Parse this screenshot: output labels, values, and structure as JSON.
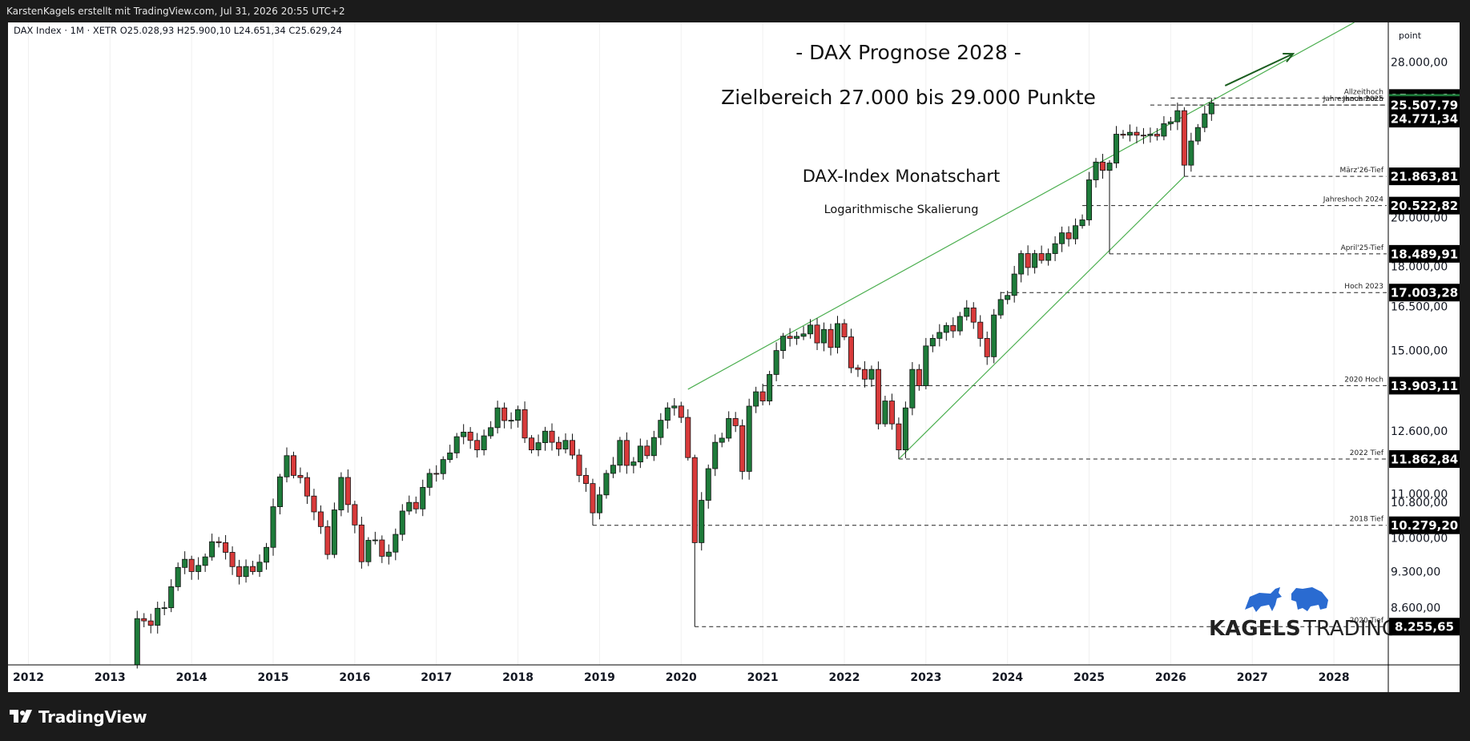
{
  "header": {
    "byline": "KarstenKagels erstellt mit TradingView.com, Jul 31, 2026 20:55 UTC+2"
  },
  "footer": {
    "brand": "TradingView"
  },
  "watermark": {
    "brand": "KAGELS TRADING",
    "brand_bold": "KAGELS",
    "brand_light": "TRADING"
  },
  "chart_data": {
    "type": "candlestick",
    "symbol_line": "DAX Index · 1M · XETR  O25.028,93  H25.900,10  L24.651,34  C25.629,24",
    "title": "- DAX Prognose 2028 -",
    "subtitle": "Zielbereich 27.000 bis 29.000 Punkte",
    "annotation_title": "DAX-Index Monatschart",
    "annotation_subtitle": "Logarithmische Skalierung",
    "y_unit": "point",
    "y_scale": "log",
    "ylim": [
      7600,
      30500
    ],
    "x_range": [
      "2011-10",
      "2028-09"
    ],
    "x_ticks": [
      "2012",
      "2013",
      "2014",
      "2015",
      "2016",
      "2017",
      "2018",
      "2019",
      "2020",
      "2021",
      "2022",
      "2023",
      "2024",
      "2025",
      "2026",
      "2027",
      "2028"
    ],
    "y_ticks": [
      {
        "value": 28000,
        "label": "28.000,00"
      },
      {
        "value": 20000,
        "label": "20.000,00"
      },
      {
        "value": 18000,
        "label": "18.000,00"
      },
      {
        "value": 16500,
        "label": "16.500,00"
      },
      {
        "value": 15000,
        "label": "15.000,00"
      },
      {
        "value": 12600,
        "label": "12.600,00"
      },
      {
        "value": 11000,
        "label": "11.000,00"
      },
      {
        "value": 10800,
        "label": "10.800,00"
      },
      {
        "value": 10000,
        "label": "10.000,00"
      },
      {
        "value": 9300,
        "label": "9.300,00"
      },
      {
        "value": 8600,
        "label": "8.600,00"
      }
    ],
    "price_tags": [
      {
        "value": 25900.1,
        "label": "25.900,10",
        "style": "dark"
      },
      {
        "value": 25629.24,
        "label": "25.629,24",
        "style": "green"
      },
      {
        "value": 25507.79,
        "label": "25.507,79",
        "style": "dark"
      },
      {
        "value": 24771.34,
        "label": "24.771,34",
        "style": "dark"
      },
      {
        "value": 21863.81,
        "label": "21.863,81",
        "style": "dark"
      },
      {
        "value": 20522.82,
        "label": "20.522,82",
        "style": "dark"
      },
      {
        "value": 18489.91,
        "label": "18.489,91",
        "style": "dark"
      },
      {
        "value": 17003.28,
        "label": "17.003,28",
        "style": "dark"
      },
      {
        "value": 13903.11,
        "label": "13.903,11",
        "style": "dark"
      },
      {
        "value": 11862.84,
        "label": "11.862,84",
        "style": "dark"
      },
      {
        "value": 10279.2,
        "label": "10.279,20",
        "style": "dark"
      },
      {
        "value": 8255.65,
        "label": "8.255,65",
        "style": "dark"
      }
    ],
    "levels": [
      {
        "name": "Allzeithoch",
        "value": 25900.1,
        "from": "2026-01"
      },
      {
        "name": "Januarhoch",
        "value": 25507.79,
        "from": "2026-01"
      },
      {
        "name": "Jahreshoch 2025",
        "value": 25507.79,
        "from": "2025-10"
      },
      {
        "name": "März'26-Tief",
        "value": 21863.81,
        "from": "2026-03"
      },
      {
        "name": "Jahreshoch 2024",
        "value": 20522.82,
        "from": "2024-12"
      },
      {
        "name": "April'25-Tief",
        "value": 18489.91,
        "from": "2025-04"
      },
      {
        "name": "Hoch 2023",
        "value": 17003.28,
        "from": "2023-12"
      },
      {
        "name": "2020 Hoch",
        "value": 13903.11,
        "from": "2021-01"
      },
      {
        "name": "2022 Tief",
        "value": 11862.84,
        "from": "2022-09"
      },
      {
        "name": "2018 Tief",
        "value": 10279.2,
        "from": "2018-12"
      },
      {
        "name": "2020 Tief",
        "value": 8255.65,
        "from": "2020-03"
      }
    ],
    "trendlines": [
      {
        "from": [
          "2020-02",
          13795
        ],
        "to": [
          "2028-04",
          30500
        ]
      },
      {
        "from": [
          "2022-09",
          11862
        ],
        "to": [
          "2026-03",
          21863
        ]
      }
    ],
    "forecast_arrow": {
      "from": [
        "2026-09",
        26600
      ],
      "to": [
        "2027-07",
        28500
      ]
    },
    "colors": {
      "up": "#1e7b3a",
      "down": "#d83a3a",
      "trend": "#4caf50",
      "arrow": "#1b5e20",
      "tag_dark": "#000000",
      "tag_green": "#1e7b3a"
    },
    "anchors": [
      [
        "2013-04",
        7600
      ],
      [
        "2013-05",
        8400
      ],
      [
        "2013-07",
        8280
      ],
      [
        "2013-09",
        8600
      ],
      [
        "2013-10",
        9000
      ],
      [
        "2013-12",
        9550
      ],
      [
        "2014-01",
        9300
      ],
      [
        "2014-03",
        9600
      ],
      [
        "2014-05",
        9900
      ],
      [
        "2014-07",
        9400
      ],
      [
        "2014-08",
        9200
      ],
      [
        "2014-10",
        9300
      ],
      [
        "2014-12",
        9800
      ],
      [
        "2015-01",
        10700
      ],
      [
        "2015-03",
        11950
      ],
      [
        "2015-04",
        11450
      ],
      [
        "2015-06",
        10950
      ],
      [
        "2015-08",
        10250
      ],
      [
        "2015-09",
        9650
      ],
      [
        "2015-11",
        11400
      ],
      [
        "2015-12",
        10750
      ],
      [
        "2016-02",
        9500
      ],
      [
        "2016-03",
        9950
      ],
      [
        "2016-06",
        9700
      ],
      [
        "2016-08",
        10600
      ],
      [
        "2016-10",
        10650
      ],
      [
        "2016-12",
        11500
      ],
      [
        "2017-02",
        11850
      ],
      [
        "2017-04",
        12450
      ],
      [
        "2017-06",
        12350
      ],
      [
        "2017-07",
        12100
      ],
      [
        "2017-10",
        13250
      ],
      [
        "2017-12",
        12900
      ],
      [
        "2018-01",
        13200
      ],
      [
        "2018-03",
        12100
      ],
      [
        "2018-05",
        12600
      ],
      [
        "2018-06",
        12300
      ],
      [
        "2018-08",
        12350
      ],
      [
        "2018-10",
        11450
      ],
      [
        "2018-11",
        11250
      ],
      [
        "2018-12",
        10560
      ],
      [
        "2019-02",
        11500
      ],
      [
        "2019-04",
        12350
      ],
      [
        "2019-05",
        11700
      ],
      [
        "2019-07",
        12200
      ],
      [
        "2019-08",
        11950
      ],
      [
        "2019-10",
        12900
      ],
      [
        "2019-11",
        13250
      ],
      [
        "2020-01",
        12980
      ],
      [
        "2020-02",
        11900
      ],
      [
        "2020-03",
        9900
      ],
      [
        "2020-04",
        10850
      ],
      [
        "2020-06",
        12300
      ],
      [
        "2020-08",
        12950
      ],
      [
        "2020-09",
        12750
      ],
      [
        "2020-10",
        11550
      ],
      [
        "2020-11",
        13300
      ],
      [
        "2020-12",
        13720
      ],
      [
        "2021-01",
        13450
      ],
      [
        "2021-03",
        15000
      ],
      [
        "2021-05",
        15400
      ],
      [
        "2021-07",
        15550
      ],
      [
        "2021-08",
        15850
      ],
      [
        "2021-09",
        15250
      ],
      [
        "2021-10",
        15700
      ],
      [
        "2021-11",
        15100
      ],
      [
        "2021-12",
        15900
      ],
      [
        "2022-01",
        15450
      ],
      [
        "2022-02",
        14450
      ],
      [
        "2022-03",
        14400
      ],
      [
        "2022-04",
        14100
      ],
      [
        "2022-05",
        14400
      ],
      [
        "2022-06",
        12800
      ],
      [
        "2022-07",
        13450
      ],
      [
        "2022-08",
        12800
      ],
      [
        "2022-09",
        12100
      ],
      [
        "2022-10",
        13250
      ],
      [
        "2022-11",
        14400
      ],
      [
        "2022-12",
        13900
      ],
      [
        "2023-01",
        15150
      ],
      [
        "2023-02",
        15400
      ],
      [
        "2023-03",
        15600
      ],
      [
        "2023-05",
        15650
      ],
      [
        "2023-06",
        16150
      ],
      [
        "2023-07",
        16450
      ],
      [
        "2023-08",
        15950
      ],
      [
        "2023-09",
        15400
      ],
      [
        "2023-10",
        14800
      ],
      [
        "2023-11",
        16200
      ],
      [
        "2023-12",
        16750
      ],
      [
        "2024-01",
        16900
      ],
      [
        "2024-02",
        17700
      ],
      [
        "2024-03",
        18500
      ],
      [
        "2024-04",
        17950
      ],
      [
        "2024-05",
        18500
      ],
      [
        "2024-06",
        18230
      ],
      [
        "2024-07",
        18500
      ],
      [
        "2024-08",
        18900
      ],
      [
        "2024-09",
        19350
      ],
      [
        "2024-10",
        19100
      ],
      [
        "2024-11",
        19650
      ],
      [
        "2024-12",
        19900
      ],
      [
        "2025-01",
        21700
      ],
      [
        "2025-02",
        22550
      ],
      [
        "2025-03",
        22150
      ],
      [
        "2025-04",
        22500
      ],
      [
        "2025-05",
        23950
      ],
      [
        "2025-06",
        23900
      ],
      [
        "2025-07",
        24050
      ],
      [
        "2025-08",
        23900
      ],
      [
        "2025-09",
        23880
      ],
      [
        "2025-10",
        23950
      ],
      [
        "2025-11",
        23850
      ],
      [
        "2025-12",
        24500
      ],
      [
        "2026-01",
        24600
      ],
      [
        "2026-02",
        25200
      ],
      [
        "2026-03",
        22400
      ],
      [
        "2026-04",
        23600
      ],
      [
        "2026-05",
        24300
      ],
      [
        "2026-06",
        25028
      ],
      [
        "2026-07",
        25629
      ]
    ]
  }
}
